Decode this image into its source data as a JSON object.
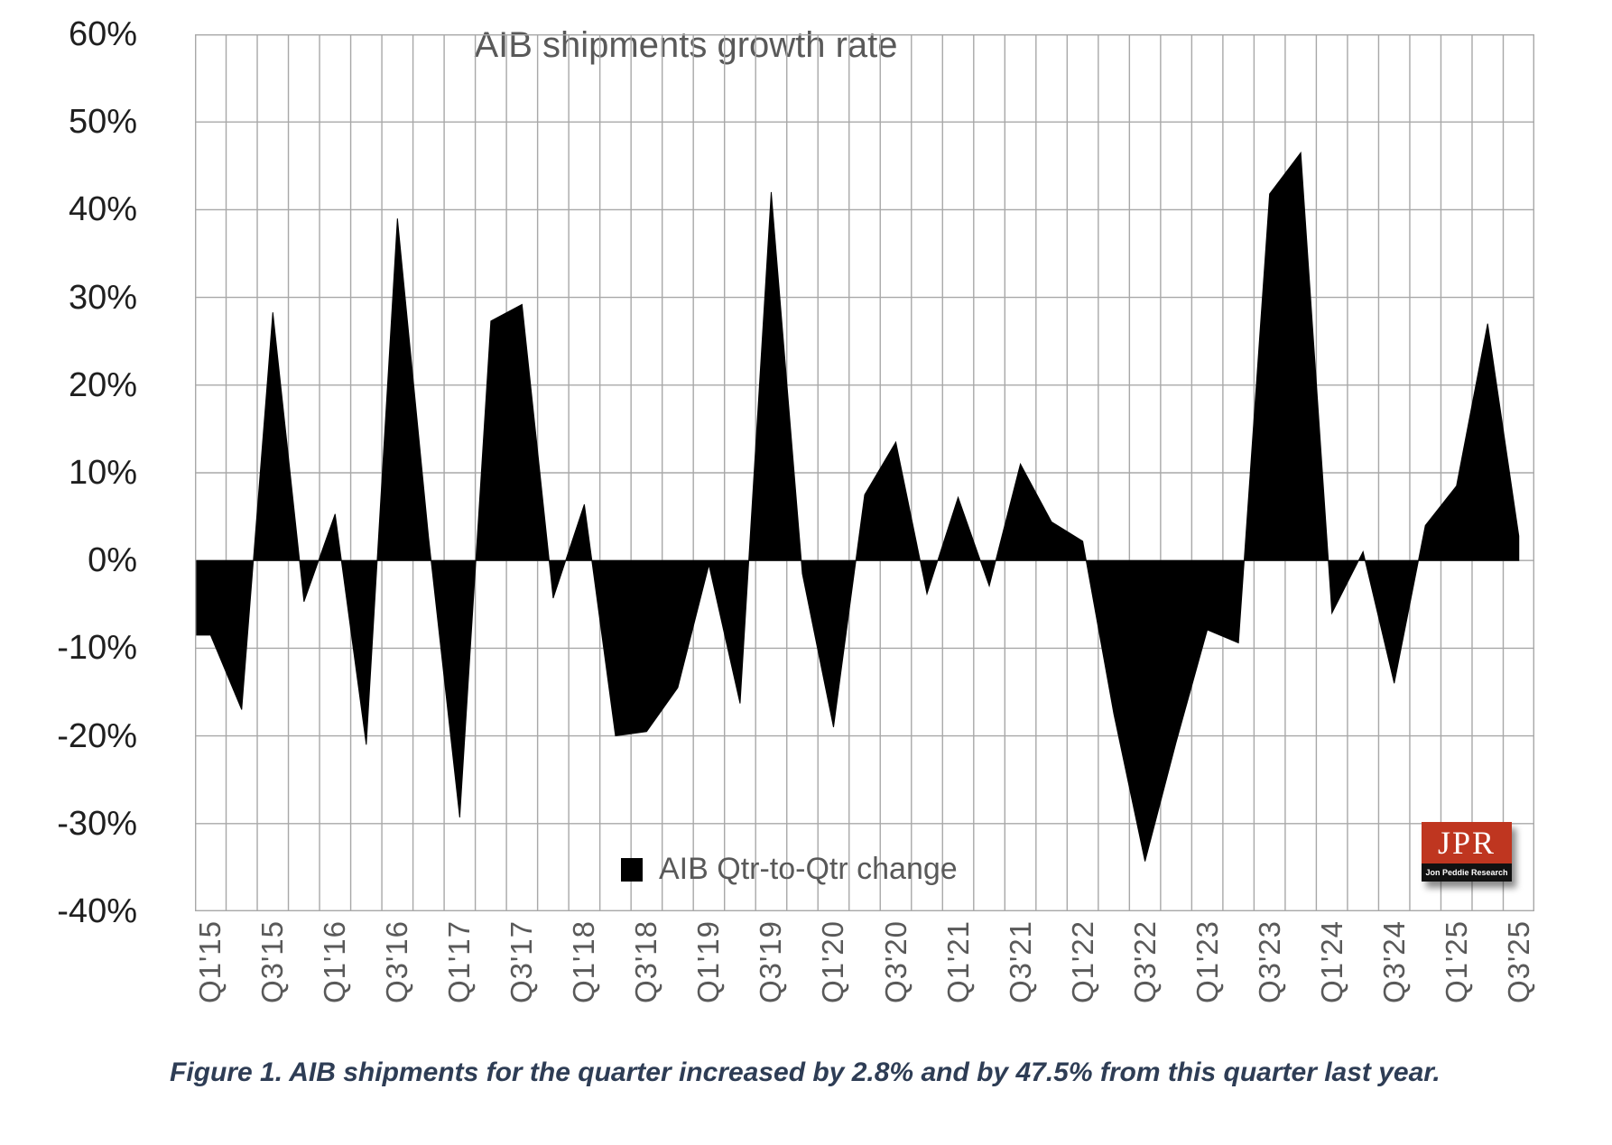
{
  "chart": {
    "title": "AIB shipments growth rate",
    "legend_label": "AIB Qtr-to-Qtr change"
  },
  "chart_data": {
    "type": "area",
    "title": "AIB shipments growth rate",
    "series_name": "AIB Qtr-to-Qtr change",
    "categories": [
      "Q1'15",
      "Q2'15",
      "Q3'15",
      "Q4'15",
      "Q1'16",
      "Q2'16",
      "Q3'16",
      "Q4'16",
      "Q1'17",
      "Q2'17",
      "Q3'17",
      "Q4'17",
      "Q1'18",
      "Q2'18",
      "Q3'18",
      "Q4'18",
      "Q1'19",
      "Q2'19",
      "Q3'19",
      "Q4'19",
      "Q1'20",
      "Q2'20",
      "Q3'20",
      "Q4'20",
      "Q1'21",
      "Q2'21",
      "Q3'21",
      "Q4'21",
      "Q1'22",
      "Q2'22",
      "Q3'22",
      "Q4'22",
      "Q1'23",
      "Q2'23",
      "Q3'23",
      "Q4'23",
      "Q1'24",
      "Q2'24",
      "Q3'24",
      "Q4'24",
      "Q1'25",
      "Q2'25",
      "Q3'25"
    ],
    "values": [
      -8.5,
      -17,
      28.3,
      -4.7,
      5.3,
      -21,
      39,
      2.6,
      -29.3,
      27.3,
      29.2,
      -4.3,
      6.4,
      -20,
      -19.5,
      -14.5,
      -0.5,
      -16.3,
      42,
      -1.5,
      -19,
      7.5,
      13.5,
      -3.8,
      7.2,
      -2.9,
      11,
      4.4,
      2.2,
      -17.5,
      -34.3,
      -20.7,
      -7.9,
      -9.4,
      41.8,
      46.5,
      -6,
      1,
      -14,
      4,
      8.5,
      27,
      2.8
    ],
    "xtick_labels": [
      "Q1'15",
      "Q3'15",
      "Q1'16",
      "Q3'16",
      "Q1'17",
      "Q3'17",
      "Q1'18",
      "Q3'18",
      "Q1'19",
      "Q3'19",
      "Q1'20",
      "Q3'20",
      "Q1'21",
      "Q3'21",
      "Q1'22",
      "Q3'22",
      "Q1'23",
      "Q3'23",
      "Q1'24",
      "Q3'24",
      "Q1'25",
      "Q3'25"
    ],
    "ytick_labels": [
      "60%",
      "50%",
      "40%",
      "30%",
      "20%",
      "10%",
      "0%",
      "-10%",
      "-20%",
      "-30%",
      "-40%"
    ],
    "ylim": [
      -40,
      60
    ],
    "ytick_step": 10,
    "grid": "both",
    "legend_position": "bottom-inside",
    "fill_color": "#000000",
    "grid_color": "#a8a8a8"
  },
  "logo": {
    "text": "JPR",
    "subtext": "Jon Peddie Research"
  },
  "caption": "Figure 1. AIB shipments for the quarter increased by 2.8% and by 47.5% from this quarter last year."
}
